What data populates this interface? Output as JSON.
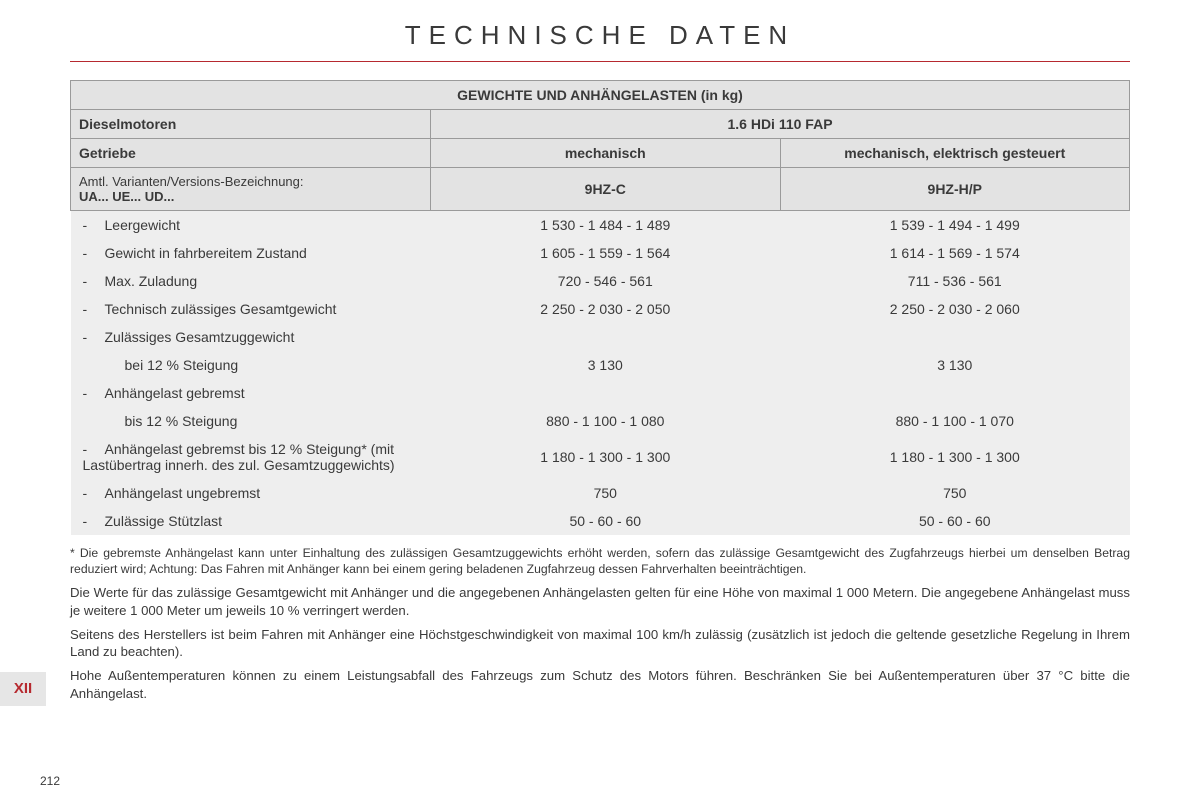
{
  "page": {
    "title": "TECHNISCHE DATEN",
    "chapter_tab": "XII",
    "page_number": "212",
    "rule_color": "#b6292f"
  },
  "table": {
    "header": {
      "main": "GEWICHTE UND ANHÄNGELASTEN (in kg)",
      "engine_label": "Dieselmotoren",
      "engine_value": "1.6 HDi 110 FAP",
      "gearbox_label": "Getriebe",
      "gearbox_col1": "mechanisch",
      "gearbox_col2": "mechanisch, elektrisch gesteuert",
      "variant_label_line1": "Amtl. Varianten/Versions-Bezeichnung:",
      "variant_label_line2": "UA... UE... UD...",
      "variant_col1": "9HZ-C",
      "variant_col2": "9HZ-H/P"
    },
    "rows": [
      {
        "label": "Leergewicht",
        "c1": "1 530 - 1 484 - 1 489",
        "c2": "1 539 - 1 494 - 1 499"
      },
      {
        "label": "Gewicht in fahrbereitem Zustand",
        "c1": "1 605 - 1 559 - 1 564",
        "c2": "1 614 - 1 569 - 1 574"
      },
      {
        "label": "Max. Zuladung",
        "c1": "720 - 546 - 561",
        "c2": "711 - 536 - 561"
      },
      {
        "label": "Technisch zulässiges Gesamtgewicht",
        "c1": "2 250 - 2 030 - 2 050",
        "c2": "2 250 - 2 030 - 2 060"
      },
      {
        "label": "Zulässiges Gesamtzuggewicht",
        "c1": "",
        "c2": ""
      },
      {
        "label": "bei 12 % Steigung",
        "indent": true,
        "c1": "3 130",
        "c2": "3 130"
      },
      {
        "label": "Anhängelast gebremst",
        "c1": "",
        "c2": ""
      },
      {
        "label": "bis 12 % Steigung",
        "indent": true,
        "c1": "880 - 1 100 - 1 080",
        "c2": "880 - 1 100 - 1 070"
      },
      {
        "label": "Anhängelast gebremst bis 12 % Steigung* (mit Lastübertrag innerh. des zul. Gesamtzuggewichts)",
        "c1": "1 180 - 1 300 - 1 300",
        "c2": "1 180 - 1 300 - 1 300"
      },
      {
        "label": "Anhängelast ungebremst",
        "c1": "750",
        "c2": "750"
      },
      {
        "label": "Zulässige Stützlast",
        "c1": "50 - 60 - 60",
        "c2": "50 - 60 - 60"
      }
    ]
  },
  "notes": {
    "n1": "* Die gebremste Anhängelast kann unter Einhaltung des zulässigen Gesamtzuggewichts erhöht werden, sofern das zulässige Gesamtgewicht des Zugfahrzeugs hierbei um denselben Betrag reduziert wird; Achtung: Das Fahren mit Anhänger kann bei einem gering beladenen Zugfahrzeug dessen Fahrverhalten beeinträchtigen.",
    "n2": "Die Werte für das zulässige Gesamtgewicht mit Anhänger und die angegebenen Anhängelasten gelten für eine Höhe von maximal 1 000 Metern. Die angegebene Anhängelast muss je weitere 1 000 Meter um jeweils 10 % verringert werden.",
    "n3": "Seitens des Herstellers ist beim Fahren mit Anhänger eine Höchstgeschwindigkeit von maximal 100 km/h zulässig (zusätzlich ist jedoch die geltende gesetzliche Regelung in Ihrem Land zu beachten).",
    "n4": "Hohe Außentemperaturen können zu einem Leistungsabfall des Fahrzeugs zum Schutz des Motors führen. Beschränken Sie bei Außentemperaturen über 37 °C bitte die Anhängelast."
  }
}
